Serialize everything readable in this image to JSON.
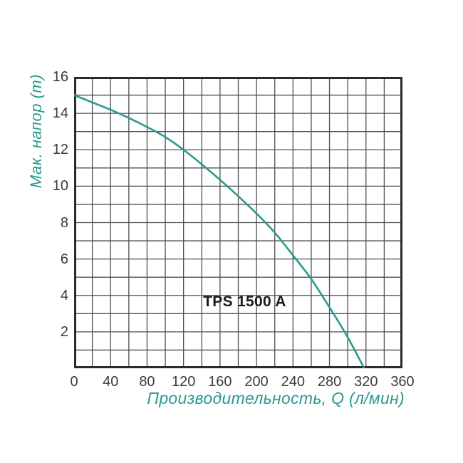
{
  "chart_data": {
    "type": "line",
    "title": "",
    "xlabel": "Производительность, Q (л/мин)",
    "ylabel": "Мак. напор (m)",
    "xlim": [
      0,
      360
    ],
    "ylim": [
      0,
      16
    ],
    "x_ticks": [
      0,
      40,
      80,
      120,
      160,
      200,
      240,
      280,
      320,
      360
    ],
    "y_ticks": [
      16,
      14,
      12,
      10,
      8,
      6,
      4,
      2
    ],
    "x_minor_step": 20,
    "y_minor_step": 1,
    "grid": "on",
    "legend": "none",
    "annotation": {
      "text": "TPS 1500 A",
      "x": 187,
      "y": 3.65
    },
    "series": [
      {
        "name": "TPS 1500 A head-flow curve",
        "x": [
          0,
          20,
          40,
          60,
          80,
          100,
          120,
          140,
          160,
          180,
          200,
          220,
          240,
          260,
          280,
          300,
          318
        ],
        "y": [
          15,
          14.6,
          14.2,
          13.75,
          13.25,
          12.7,
          12.0,
          11.2,
          10.35,
          9.45,
          8.5,
          7.45,
          6.2,
          4.9,
          3.35,
          1.7,
          0
        ]
      }
    ],
    "colors": {
      "accent": "#2a9a8e",
      "grid": "#4f4f4f",
      "border": "#2b2b2b",
      "tick_text": "#3b3b3b",
      "annotation_text": "#1c1c1c"
    }
  }
}
